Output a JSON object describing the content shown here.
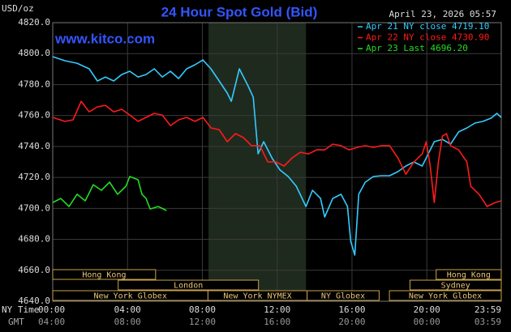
{
  "chart_data": {
    "type": "line",
    "title": "24 Hour Spot Gold (Bid)",
    "unit_label": "USD/oz",
    "timestamp": "April 23, 2026 05:57",
    "watermark": "www.kitco.com",
    "x_axis_label": "NY Time",
    "x2_axis_label": "GMT",
    "xlim": [
      0,
      23.98
    ],
    "xticks": [
      {
        "value": 0,
        "label": "00:00"
      },
      {
        "value": 4,
        "label": "04:00"
      },
      {
        "value": 8,
        "label": "08:00"
      },
      {
        "value": 12,
        "label": "12:00"
      },
      {
        "value": 16,
        "label": "16:00"
      },
      {
        "value": 20,
        "label": "20:00"
      },
      {
        "value": 23.98,
        "label": "23:59"
      }
    ],
    "x2tick_labels": [
      "04:00",
      "08:00",
      "12:00",
      "16:00",
      "20:00",
      "00:00",
      "03:59"
    ],
    "ylim": [
      4640,
      4820
    ],
    "yticks": [
      {
        "value": 4640,
        "label": "4640.0"
      },
      {
        "value": 4660,
        "label": "4660.0"
      },
      {
        "value": 4680,
        "label": "4680.0"
      },
      {
        "value": 4700,
        "label": "4700.0"
      },
      {
        "value": 4720,
        "label": "4720.0"
      },
      {
        "value": 4740,
        "label": "4740.0"
      },
      {
        "value": 4760,
        "label": "4760.0"
      },
      {
        "value": 4780,
        "label": "4780.0"
      },
      {
        "value": 4800,
        "label": "4800.0"
      },
      {
        "value": 4820,
        "label": "4820.0"
      }
    ],
    "grid": true,
    "shade": [
      8.33,
      13.54
    ],
    "sessions": [
      {
        "label": "Hong Kong",
        "start": 0,
        "end": 5.5,
        "row": 0
      },
      {
        "label": "Hong Kong",
        "start": 20.5,
        "end": 23.98,
        "row": 0
      },
      {
        "label": "London",
        "start": 3.5,
        "end": 11.0,
        "row": 1
      },
      {
        "label": "Sydney",
        "start": 19.1,
        "end": 23.98,
        "row": 1
      },
      {
        "label": "New York Globex",
        "start": 0,
        "end": 8.3,
        "row": 2
      },
      {
        "label": "New York NYMEX",
        "start": 8.3,
        "end": 13.6,
        "row": 2
      },
      {
        "label": "NY Globex",
        "start": 13.6,
        "end": 17.45,
        "row": 2
      },
      {
        "label": "New York Globex",
        "start": 18.0,
        "end": 23.98,
        "row": 2
      }
    ],
    "series": [
      {
        "name": "Apr 21 NY close 4719.10",
        "color": "#33ccff",
        "x": [
          0,
          0.65,
          1.3,
          1.95,
          2.39,
          2.82,
          3.26,
          3.69,
          4.12,
          4.56,
          4.99,
          5.43,
          5.86,
          6.29,
          6.73,
          7.16,
          7.6,
          8.03,
          8.46,
          8.9,
          9.33,
          9.55,
          9.98,
          10.42,
          10.72,
          10.98,
          11.28,
          11.72,
          12.15,
          12.59,
          13.02,
          13.54,
          13.89,
          14.32,
          14.54,
          14.97,
          15.41,
          15.76,
          15.93,
          16.15,
          16.36,
          16.71,
          17.14,
          17.58,
          18.01,
          18.45,
          18.88,
          19.31,
          19.75,
          19.97,
          20.4,
          20.83,
          21.27,
          21.7,
          22.14,
          22.57,
          23.0,
          23.44,
          23.74,
          23.98
        ],
        "values": [
          4798.0,
          4795.4,
          4793.8,
          4790.2,
          4782.3,
          4784.9,
          4782.3,
          4786.5,
          4788.6,
          4784.9,
          4786.5,
          4790.2,
          4784.9,
          4788.6,
          4783.9,
          4790.2,
          4792.8,
          4795.9,
          4790.2,
          4782.3,
          4774.5,
          4769.2,
          4790.2,
          4779.7,
          4771.9,
          4735.3,
          4743.1,
          4732.6,
          4724.8,
          4720.6,
          4714.3,
          4701.2,
          4711.7,
          4706.4,
          4694.4,
          4706.4,
          4709.1,
          4701.2,
          4678.7,
          4669.8,
          4709.1,
          4716.9,
          4720.6,
          4721.1,
          4721.1,
          4723.7,
          4727.4,
          4730.0,
          4727.4,
          4732.6,
          4743.1,
          4744.6,
          4741.5,
          4749.4,
          4752.0,
          4755.1,
          4756.2,
          4758.3,
          4761.4,
          4758.8
        ]
      },
      {
        "name": "Apr 22 NY close 4730.90",
        "color": "#ff1a1a",
        "x": [
          0,
          0.65,
          1.09,
          1.52,
          1.95,
          2.39,
          2.82,
          3.26,
          3.69,
          4.12,
          4.56,
          4.99,
          5.43,
          5.86,
          6.29,
          6.73,
          7.16,
          7.6,
          8.03,
          8.46,
          8.9,
          9.33,
          9.77,
          10.2,
          10.63,
          11.07,
          11.5,
          11.94,
          12.37,
          12.8,
          13.24,
          13.67,
          14.11,
          14.54,
          14.97,
          15.41,
          15.84,
          16.28,
          16.71,
          17.14,
          17.58,
          18.01,
          18.45,
          18.88,
          19.31,
          19.75,
          19.97,
          20.18,
          20.4,
          20.62,
          20.83,
          21.05,
          21.27,
          21.7,
          22.14,
          22.35,
          22.79,
          23.22,
          23.65,
          23.98
        ],
        "values": [
          4758.8,
          4756.2,
          4757.2,
          4769.2,
          4762.4,
          4765.6,
          4766.6,
          4762.4,
          4764.0,
          4760.3,
          4756.2,
          4758.8,
          4761.4,
          4760.3,
          4753.5,
          4757.2,
          4758.8,
          4756.2,
          4758.8,
          4752.0,
          4750.9,
          4743.1,
          4748.3,
          4745.7,
          4740.5,
          4740.5,
          4730.0,
          4730.0,
          4727.4,
          4732.6,
          4736.3,
          4735.2,
          4737.8,
          4737.8,
          4741.5,
          4740.5,
          4737.8,
          4739.4,
          4740.5,
          4739.4,
          4740.5,
          4740.5,
          4732.6,
          4722.1,
          4730.0,
          4735.2,
          4743.1,
          4727.4,
          4703.8,
          4730.0,
          4746.7,
          4748.3,
          4740.5,
          4737.8,
          4730.0,
          4714.3,
          4709.1,
          4701.2,
          4703.8,
          4704.9
        ]
      },
      {
        "name": "Apr 23 Last 4696.20",
        "color": "#22dd22",
        "x": [
          0,
          0.43,
          0.87,
          1.3,
          1.74,
          2.17,
          2.6,
          3.04,
          3.47,
          3.91,
          4.12,
          4.56,
          4.77,
          4.99,
          5.21,
          5.64,
          6.08
        ],
        "values": [
          4703.8,
          4706.4,
          4701.2,
          4709.1,
          4704.9,
          4715.3,
          4711.7,
          4716.9,
          4709.1,
          4714.3,
          4720.6,
          4718.5,
          4709.1,
          4706.4,
          4699.6,
          4701.2,
          4698.6
        ]
      }
    ]
  }
}
